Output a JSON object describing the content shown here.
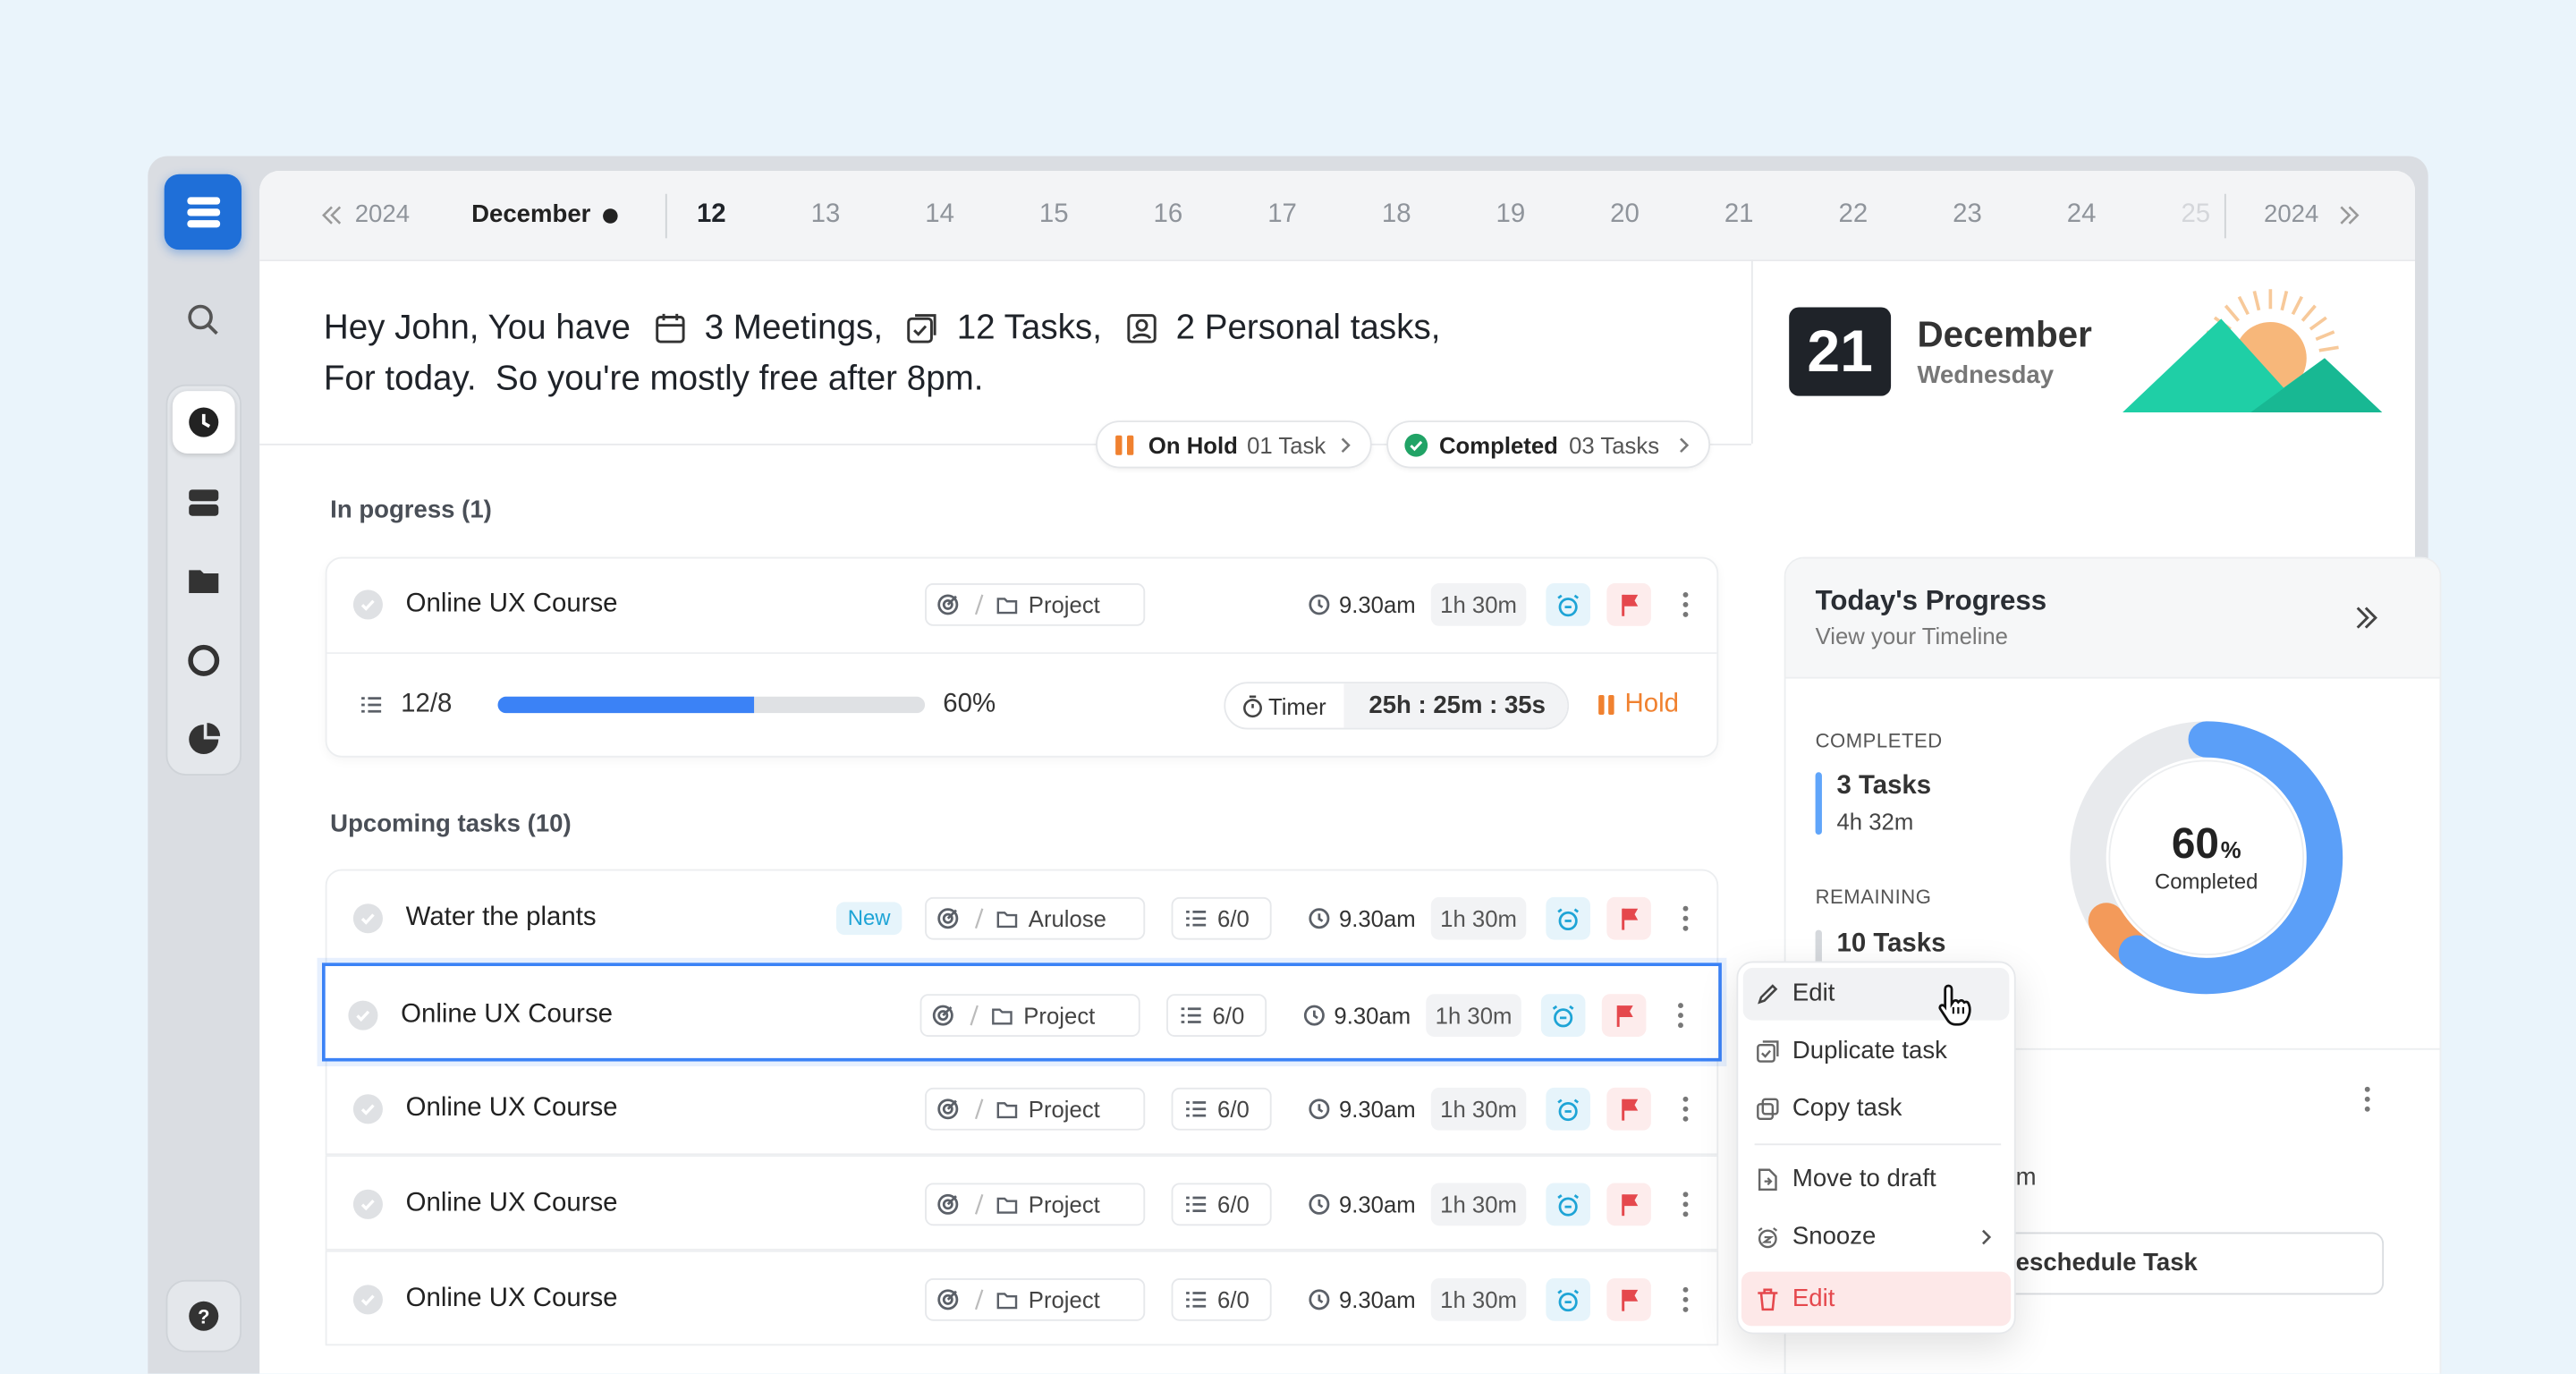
{
  "date_bar": {
    "prev_year": "2024",
    "month": "December",
    "days": [
      "12",
      "13",
      "14",
      "15",
      "16",
      "17",
      "18",
      "19",
      "20",
      "21",
      "22",
      "23",
      "24",
      "25"
    ],
    "next_year": "2024"
  },
  "greeting": {
    "intro": "Hey John, You have",
    "meetings": "3 Meetings,",
    "tasks": "12 Tasks,",
    "personal": "2 Personal tasks,",
    "line2": "For today.  So you're mostly free after 8pm."
  },
  "status": [
    {
      "label": "On Hold",
      "count": "01 Task"
    },
    {
      "label": "Completed",
      "count": "03 Tasks"
    }
  ],
  "today": {
    "day": "21",
    "month": "December",
    "weekday": "Wednesday"
  },
  "in_progress": {
    "heading": "In pogress (1)",
    "task": {
      "title": "Online UX Course",
      "tag": "Project",
      "time": "9.30am",
      "duration": "1h 30m",
      "subtasks": "12/8",
      "progress": "60%",
      "timer_label": "Timer",
      "timer": "25h : 25m : 35s",
      "action": "Hold"
    }
  },
  "upcoming": {
    "heading": "Upcoming tasks (10)",
    "tasks": [
      {
        "title": "Water the plants",
        "badge": "New",
        "tag": "Arulose",
        "subtasks": "6/0",
        "time": "9.30am",
        "duration": "1h 30m"
      },
      {
        "title": "Online UX Course",
        "tag": "Project",
        "subtasks": "6/0",
        "time": "9.30am",
        "duration": "1h 30m"
      },
      {
        "title": "Online UX Course",
        "tag": "Project",
        "subtasks": "6/0",
        "time": "9.30am",
        "duration": "1h 30m"
      },
      {
        "title": "Online UX Course",
        "tag": "Project",
        "subtasks": "6/0",
        "time": "9.30am",
        "duration": "1h 30m"
      },
      {
        "title": "Online UX Course",
        "tag": "Project",
        "subtasks": "6/0",
        "time": "9.30am",
        "duration": "1h 30m"
      }
    ]
  },
  "progress_panel": {
    "title": "Today's Progress",
    "subtitle": "View your Timeline",
    "completed_label": "COMPLETED",
    "completed_tasks": "3 Tasks",
    "completed_time": "4h 32m",
    "remaining_label": "REMAINING",
    "remaining_tasks": "10 Tasks",
    "donut": {
      "value": 60,
      "unit": "%",
      "label": "Completed"
    },
    "partial_text": "m",
    "button": "eschedule Task"
  },
  "context_menu": [
    "Edit",
    "Duplicate task",
    "Copy task",
    "Move to draft",
    "Snooze",
    "Edit"
  ]
}
